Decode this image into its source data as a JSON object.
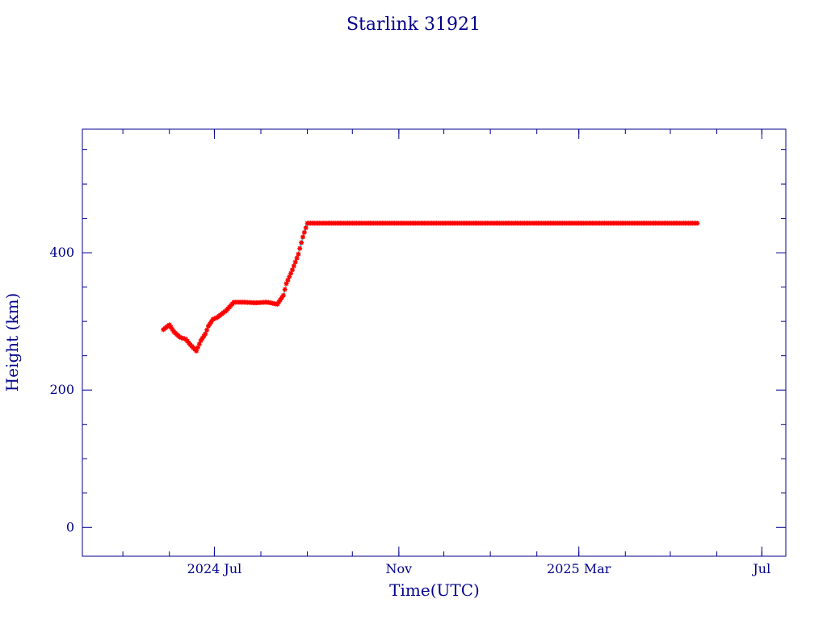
{
  "chart_data": {
    "type": "scatter",
    "title": "Starlink 31921",
    "xlabel": "Time(UTC)",
    "ylabel": "Height (km)",
    "x_tick_labels": [
      "2024 Jul",
      "Nov",
      "2025 Mar",
      "Jul"
    ],
    "y_tick_labels": [
      "0",
      "200",
      "400"
    ],
    "x_ticks": [
      "2024-07-01",
      "2024-11-01",
      "2025-03-01",
      "2025-07-01"
    ],
    "y_ticks": [
      0,
      200,
      400
    ],
    "xlim": [
      "2024-04-04",
      "2025-07-17"
    ],
    "ylim": [
      -42,
      580
    ],
    "grid": false,
    "marker_color": "#ff0000",
    "line_color": "#00e5e5",
    "axis_color": "#00008b",
    "x": [
      "2024-05-28",
      "2024-06-01",
      "2024-06-04",
      "2024-06-08",
      "2024-06-12",
      "2024-06-15",
      "2024-06-19",
      "2024-06-22",
      "2024-06-25",
      "2024-06-27",
      "2024-06-30",
      "2024-07-03",
      "2024-07-09",
      "2024-07-14",
      "2024-07-21",
      "2024-07-28",
      "2024-08-05",
      "2024-08-12",
      "2024-08-16",
      "2024-08-18",
      "2024-08-22",
      "2024-08-26",
      "2024-08-29",
      "2024-09-01",
      "2024-09-06",
      "2024-09-15",
      "2024-10-01",
      "2024-10-15",
      "2024-11-01",
      "2024-11-15",
      "2024-12-01",
      "2024-12-15",
      "2025-01-01",
      "2025-01-15",
      "2025-02-01",
      "2025-02-15",
      "2025-03-01",
      "2025-03-15",
      "2025-04-01",
      "2025-04-15",
      "2025-05-01",
      "2025-05-19"
    ],
    "y": [
      288,
      295,
      285,
      277,
      274,
      266,
      257,
      272,
      282,
      293,
      303,
      306,
      316,
      328,
      328,
      327,
      328,
      325,
      338,
      355,
      375,
      398,
      423,
      443,
      443,
      443,
      443,
      443,
      443,
      443,
      443,
      443,
      443,
      443,
      443,
      443,
      443,
      443,
      443,
      443,
      443,
      443
    ]
  }
}
